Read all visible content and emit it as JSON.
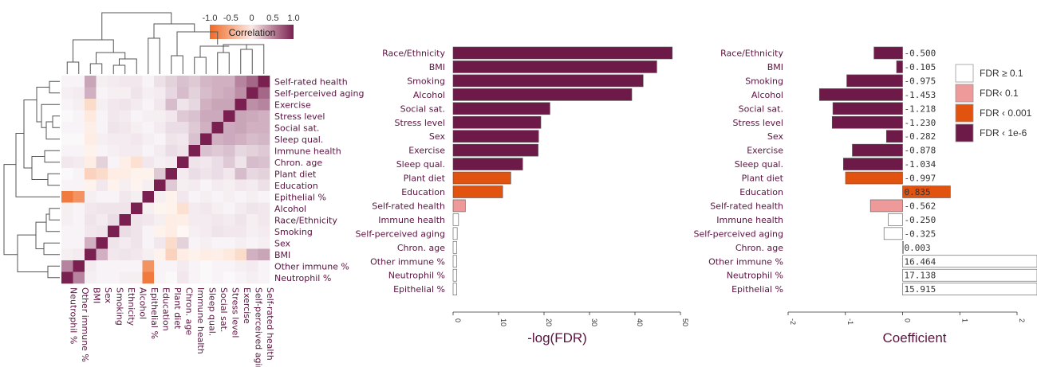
{
  "colors": {
    "fdr_ge_0_1": "#ffffff",
    "fdr_lt_0_1": "#ee9a9a",
    "fdr_lt_0_001": "#e2530f",
    "fdr_lt_1e_6": "#6e1a48",
    "label": "#5b1340",
    "corr_neg": "#ef6a25",
    "corr_zero": "#ffffff",
    "corr_pos": "#7a2050"
  },
  "chart_data": [
    {
      "type": "heatmap",
      "colorbar": {
        "title": "Correlation",
        "ticks": [
          "-1.0",
          "-0.5",
          "0",
          "0.5",
          "1.0"
        ],
        "range": [
          -1,
          1
        ]
      },
      "row_labels": [
        "Self-rated health",
        "Self-perceived aging",
        "Exercise",
        "Stress level",
        "Social sat.",
        "Sleep qual.",
        "Immune health",
        "Chron. age",
        "Plant diet",
        "Education",
        "Epithelial %",
        "Alcohol",
        "Race/Ethnicity",
        "Smoking",
        "Sex",
        "BMI",
        "Other immune %",
        "Neutrophil %"
      ],
      "col_labels": [
        "Neutrophil %",
        "Other immune %",
        "BMI",
        "Sex",
        "Smoking",
        "Ethnicity",
        "Alcohol",
        "Epithelial %",
        "Education",
        "Plant diet",
        "Chron. age",
        "Immune health",
        "Sleep qual.",
        "Social sat.",
        "Stress level",
        "Exercise",
        "Self-perceived aging",
        "Self-rated health"
      ],
      "values": [
        [
          0.02,
          0.02,
          0.3,
          0.03,
          0.04,
          0.05,
          0.05,
          0.02,
          0.07,
          0.12,
          0.18,
          0.15,
          0.22,
          0.25,
          0.25,
          0.45,
          0.6,
          1
        ],
        [
          0.03,
          0.04,
          0.25,
          0.02,
          0.03,
          0.03,
          0.06,
          0.03,
          0.04,
          0.1,
          0.2,
          0.12,
          0.2,
          0.25,
          0.28,
          0.4,
          1,
          0.6
        ],
        [
          0.02,
          0.03,
          -0.15,
          0.03,
          0.05,
          0.06,
          0.04,
          0.02,
          0.05,
          0.2,
          0.06,
          0.1,
          0.25,
          0.3,
          0.3,
          1,
          0.4,
          0.45
        ],
        [
          0.01,
          0.02,
          -0.08,
          0.02,
          0.05,
          0.04,
          0.02,
          0.03,
          0.03,
          0.05,
          0.15,
          0.18,
          0.28,
          0.28,
          1,
          0.3,
          0.28,
          0.25
        ],
        [
          0.02,
          0.02,
          -0.05,
          0.02,
          0.06,
          0.05,
          0.03,
          0.02,
          0.04,
          0.08,
          0.08,
          0.15,
          0.25,
          1,
          0.28,
          0.3,
          0.25,
          0.25
        ],
        [
          0.01,
          0.01,
          -0.06,
          0.03,
          0.04,
          0.04,
          0.05,
          0.03,
          0.02,
          0.06,
          0.05,
          0.18,
          1,
          0.25,
          0.28,
          0.25,
          0.2,
          0.22
        ],
        [
          0.02,
          0.02,
          -0.04,
          0.02,
          0.03,
          0.04,
          0.04,
          0.02,
          0.04,
          0.08,
          0.06,
          1,
          0.18,
          0.15,
          0.18,
          0.1,
          0.12,
          0.15
        ],
        [
          0.05,
          0.04,
          -0.06,
          0.12,
          0.02,
          -0.05,
          -0.12,
          0.05,
          0.03,
          0.04,
          1,
          0.06,
          0.05,
          0.08,
          0.15,
          0.06,
          0.2,
          0.18
        ],
        [
          0.01,
          0.02,
          -0.2,
          -0.15,
          -0.06,
          -0.06,
          -0.04,
          -0.04,
          0.15,
          1,
          0.04,
          0.08,
          0.06,
          0.08,
          0.05,
          0.2,
          0.1,
          0.12
        ],
        [
          0.02,
          0.02,
          -0.04,
          0.05,
          -0.04,
          0.03,
          -0.03,
          0.03,
          1,
          0.15,
          0.03,
          0.04,
          0.02,
          0.04,
          0.03,
          0.05,
          0.04,
          0.07
        ],
        [
          -0.85,
          -0.65,
          0.03,
          0.02,
          0.02,
          0.05,
          0.03,
          1,
          0.03,
          -0.04,
          0.05,
          0.02,
          0.03,
          0.02,
          0.03,
          0.02,
          0.03,
          0.02
        ],
        [
          0.03,
          0.02,
          0.05,
          0.06,
          0.06,
          0.06,
          1,
          0.03,
          -0.03,
          -0.04,
          -0.12,
          0.04,
          0.05,
          0.03,
          0.02,
          0.04,
          0.06,
          0.05
        ],
        [
          0.03,
          0.02,
          0.06,
          0.04,
          0.08,
          1,
          0.06,
          0.05,
          0.03,
          -0.06,
          -0.05,
          0.04,
          0.04,
          0.05,
          0.04,
          0.06,
          0.03,
          0.05
        ],
        [
          0.02,
          0.02,
          0.05,
          0.06,
          1,
          0.08,
          0.06,
          0.02,
          -0.04,
          -0.06,
          -0.02,
          0.03,
          0.04,
          0.06,
          0.05,
          0.05,
          0.03,
          0.04
        ],
        [
          0.02,
          0.02,
          0.25,
          1,
          0.06,
          0.04,
          0.06,
          0.02,
          0.05,
          -0.15,
          0.12,
          0.02,
          0.03,
          0.02,
          0.02,
          0.03,
          0.02,
          0.03
        ],
        [
          0.03,
          0.04,
          1,
          0.25,
          0.05,
          0.06,
          0.05,
          0.03,
          -0.04,
          -0.2,
          -0.06,
          -0.04,
          -0.06,
          -0.05,
          -0.08,
          -0.15,
          0.25,
          0.3
        ],
        [
          0.45,
          1,
          0.04,
          0.02,
          0.02,
          0.02,
          0.02,
          -0.65,
          0.02,
          0.02,
          0.04,
          0.02,
          0.01,
          0.02,
          0.02,
          0.03,
          0.04,
          0.02
        ],
        [
          1,
          0.45,
          0.03,
          0.02,
          0.02,
          0.03,
          0.03,
          -0.85,
          0.02,
          0.01,
          0.05,
          0.02,
          0.01,
          0.02,
          0.01,
          0.02,
          0.03,
          0.02
        ]
      ]
    },
    {
      "type": "bar",
      "orientation": "horizontal",
      "categories": [
        "Race/Ethnicity",
        "BMI",
        "Smoking",
        "Alcohol",
        "Social sat.",
        "Stress level",
        "Sex",
        "Exercise",
        "Sleep qual.",
        "Plant diet",
        "Education",
        "Self-rated health",
        "Immune health",
        "Self-perceived aging",
        "Chron. age",
        "Other immune %",
        "Neutrophil %",
        "Epithelial %"
      ],
      "values": [
        48.2,
        44.8,
        41.8,
        39.3,
        21.3,
        19.3,
        18.8,
        18.7,
        15.3,
        12.7,
        10.9,
        2.7,
        1.2,
        0.9,
        0.8,
        0.8,
        0.8,
        0.8
      ],
      "fdr_class": [
        "lt_1e_6",
        "lt_1e_6",
        "lt_1e_6",
        "lt_1e_6",
        "lt_1e_6",
        "lt_1e_6",
        "lt_1e_6",
        "lt_1e_6",
        "lt_1e_6",
        "lt_0_001",
        "lt_0_001",
        "lt_0_1",
        "ge_0_1",
        "ge_0_1",
        "ge_0_1",
        "ge_0_1",
        "ge_0_1",
        "ge_0_1"
      ],
      "xlabel": "-log(FDR)",
      "xticks": [
        "0",
        "10",
        "20",
        "30",
        "40",
        "50"
      ],
      "xlim": [
        0,
        50
      ]
    },
    {
      "type": "bar",
      "orientation": "horizontal",
      "categories": [
        "Race/Ethnicity",
        "BMI",
        "Smoking",
        "Alcohol",
        "Social sat.",
        "Stress level",
        "Sex",
        "Exercise",
        "Sleep qual.",
        "Plant diet",
        "Education",
        "Self-rated health",
        "Immune health",
        "Self-perceived aging",
        "Chron. age",
        "Other immune %",
        "Neutrophil %",
        "Epithelial %"
      ],
      "values": [
        -0.5,
        -0.105,
        -0.975,
        -1.453,
        -1.218,
        -1.23,
        -0.282,
        -0.878,
        -1.034,
        -0.997,
        0.835,
        -0.562,
        -0.25,
        -0.325,
        0.003,
        16.464,
        17.138,
        15.915
      ],
      "value_labels": [
        "-0.500",
        "-0.105",
        "-0.975",
        "-1.453",
        "-1.218",
        "-1.230",
        "-0.282",
        "-0.878",
        "-1.034",
        "-0.997",
        "0.835",
        "-0.562",
        "-0.250",
        "-0.325",
        "0.003",
        "16.464",
        "17.138",
        "15.915"
      ],
      "fdr_class": [
        "lt_1e_6",
        "lt_1e_6",
        "lt_1e_6",
        "lt_1e_6",
        "lt_1e_6",
        "lt_1e_6",
        "lt_1e_6",
        "lt_1e_6",
        "lt_1e_6",
        "lt_0_001",
        "lt_0_001",
        "lt_0_1",
        "ge_0_1",
        "ge_0_1",
        "ge_0_1",
        "ge_0_1",
        "ge_0_1",
        "ge_0_1"
      ],
      "xlabel": "Coefficient",
      "xticks": [
        "-2",
        "-1",
        "0",
        "1",
        "2"
      ],
      "xlim": [
        -2,
        2
      ]
    }
  ],
  "legend": [
    {
      "key": "ge_0_1",
      "label": "FDR ≥ 0.1"
    },
    {
      "key": "lt_0_1",
      "label": "FDR‹ 0.1"
    },
    {
      "key": "lt_0_001",
      "label": "FDR ‹ 0.001"
    },
    {
      "key": "lt_1e_6",
      "label": "FDR ‹ 1e-6"
    }
  ]
}
